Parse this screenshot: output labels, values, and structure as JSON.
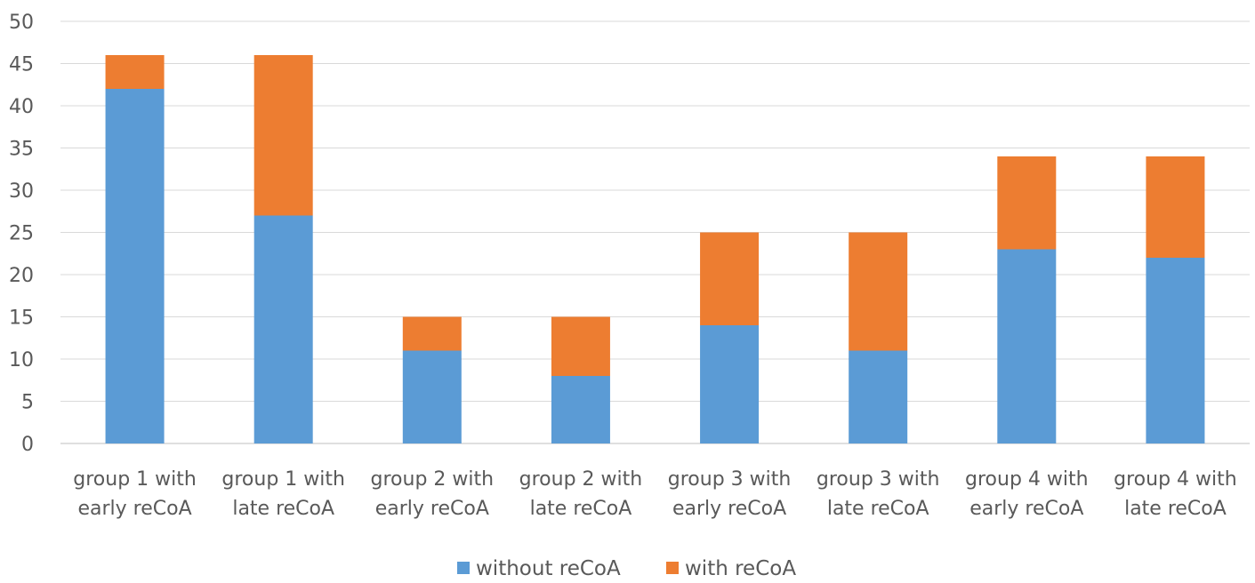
{
  "chart_data": {
    "type": "bar",
    "stacked": true,
    "categories": [
      [
        "group 1 with",
        "early reCoA"
      ],
      [
        "group 1 with",
        "late reCoA"
      ],
      [
        "group 2 with",
        "early reCoA"
      ],
      [
        "group 2 with",
        "late reCoA"
      ],
      [
        "group 3 with",
        "early reCoA"
      ],
      [
        "group 3 with",
        "late reCoA"
      ],
      [
        "group 4 with",
        "early reCoA"
      ],
      [
        "group 4 with",
        "late reCoA"
      ]
    ],
    "series": [
      {
        "name": "without reCoA",
        "color": "#5b9bd5",
        "values": [
          42,
          27,
          11,
          8,
          14,
          11,
          23,
          22
        ]
      },
      {
        "name": "with reCoA",
        "color": "#ed7d31",
        "values": [
          4,
          19,
          4,
          7,
          11,
          14,
          11,
          12
        ]
      }
    ],
    "ylim": [
      0,
      50
    ],
    "yticks": [
      0,
      5,
      10,
      15,
      20,
      25,
      30,
      35,
      40,
      45,
      50
    ],
    "grid": true,
    "legend_position": "bottom",
    "title": "",
    "xlabel": "",
    "ylabel": ""
  }
}
